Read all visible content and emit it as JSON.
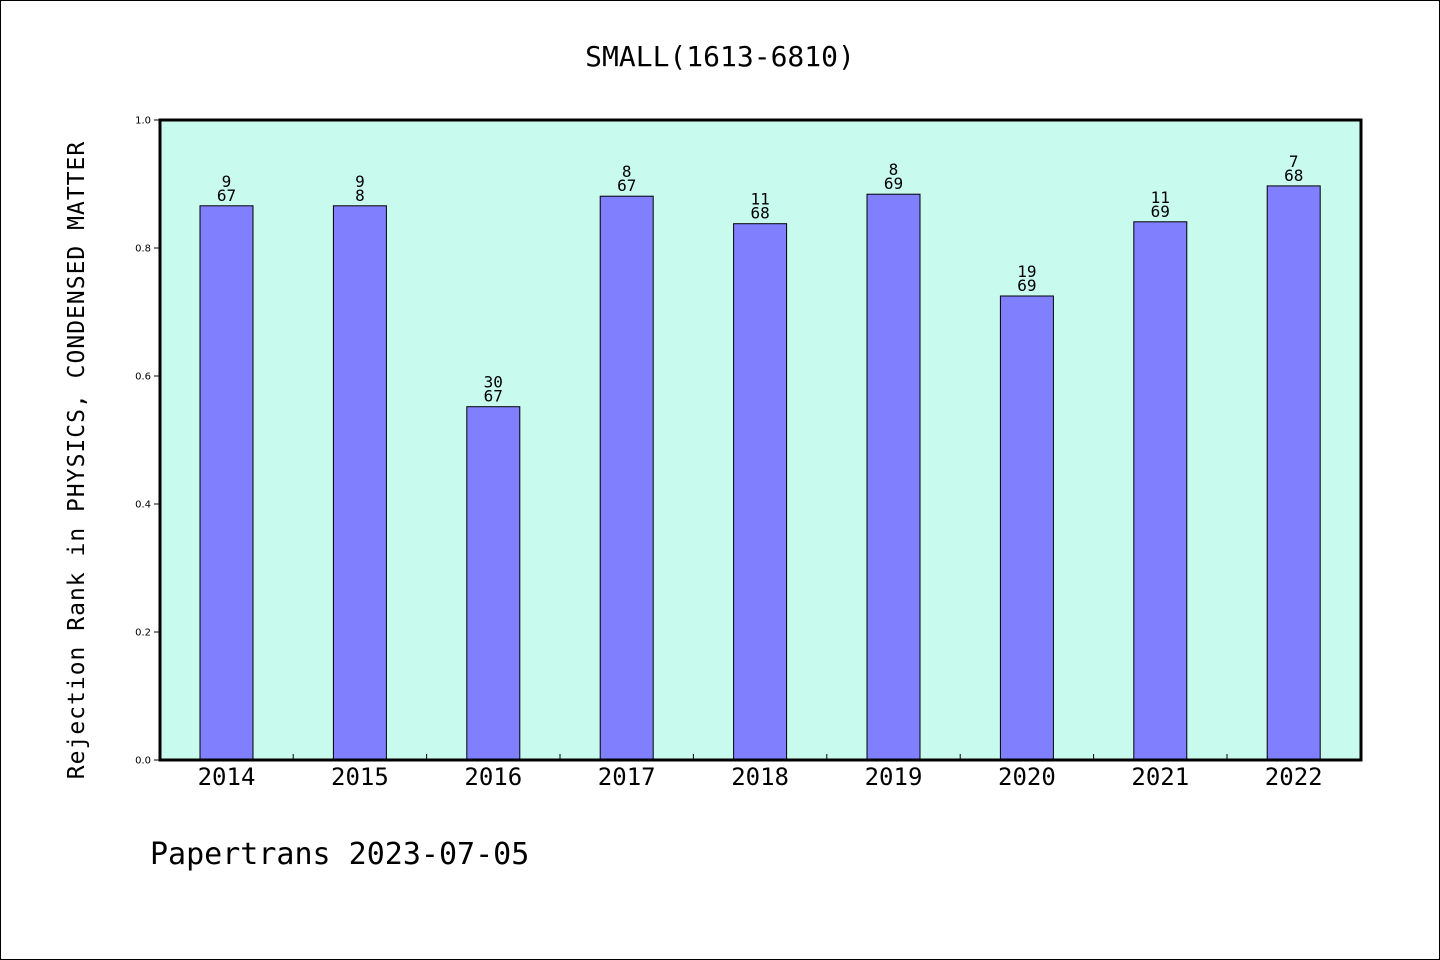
{
  "title": "SMALL(1613-6810)",
  "footer": "Papertrans 2023-07-05",
  "colors": {
    "plot_background": "#c8faee",
    "bar_fill": "#8080ff",
    "bar_stroke": "#000000",
    "axis": "#000000"
  },
  "chart_data": {
    "type": "bar",
    "title": "SMALL(1613-6810)",
    "xlabel": "",
    "ylabel": "Rejection Rank in PHYSICS, CONDENSED MATTER",
    "ylim": [
      0,
      1.0
    ],
    "yticks": [
      "0.0",
      "0.2",
      "0.4",
      "0.6",
      "0.8",
      "1.0"
    ],
    "categories": [
      "2014",
      "2015",
      "2016",
      "2017",
      "2018",
      "2019",
      "2020",
      "2021",
      "2022"
    ],
    "values": [
      0.866,
      0.866,
      0.552,
      0.881,
      0.838,
      0.884,
      0.725,
      0.841,
      0.897
    ],
    "labels_top": [
      "9",
      "9",
      "30",
      "8",
      "11",
      "8",
      "19",
      "11",
      "7"
    ],
    "labels_bottom": [
      "67",
      "8",
      "67",
      "67",
      "68",
      "69",
      "69",
      "69",
      "68"
    ],
    "grid": false,
    "legend": "none"
  }
}
